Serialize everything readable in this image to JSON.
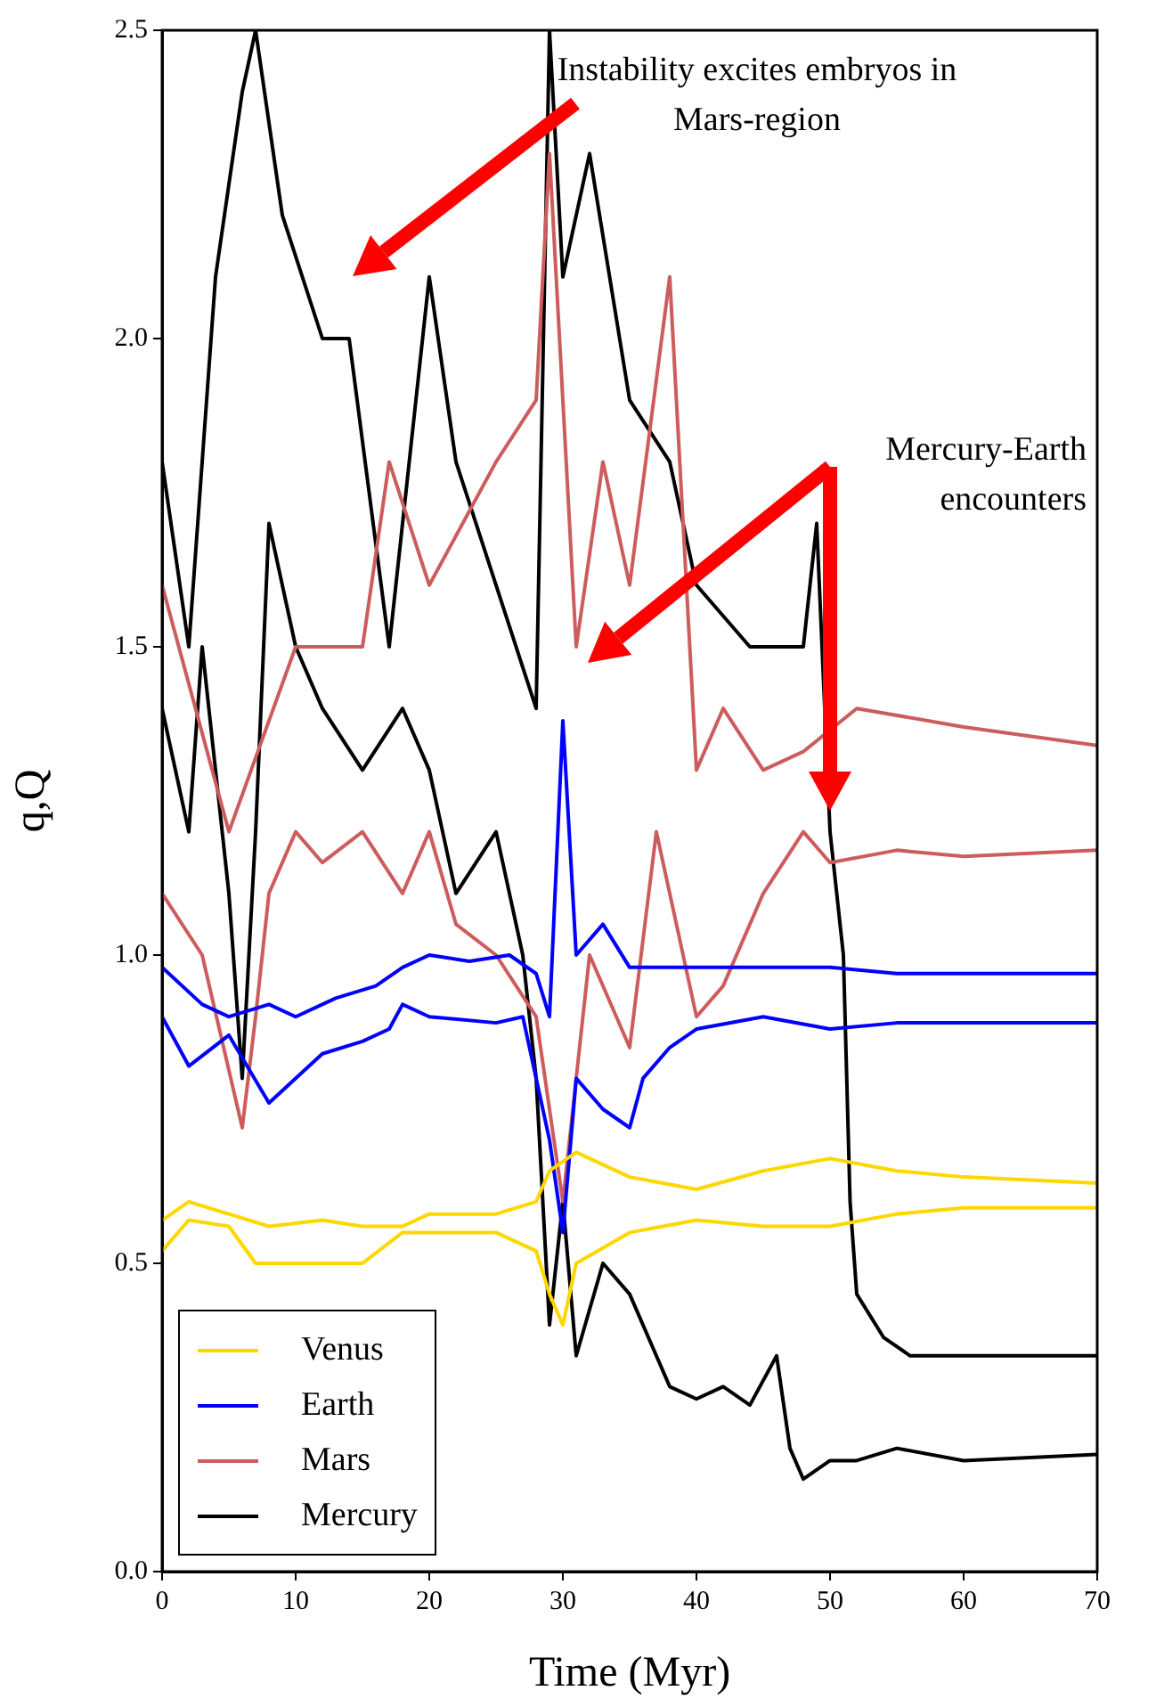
{
  "chart_data": {
    "type": "line",
    "xlabel": "Time (Myr)",
    "ylabel": "q,Q",
    "xlim": [
      0,
      70
    ],
    "ylim": [
      0,
      2.5
    ],
    "xticks": [
      0,
      10,
      20,
      30,
      40,
      50,
      60,
      70
    ],
    "yticks": [
      {
        "value": 0,
        "label": "0.0"
      },
      {
        "value": 0.5,
        "label": "0.5"
      },
      {
        "value": 1,
        "label": "1.0"
      },
      {
        "value": 1.5,
        "label": "1.5"
      },
      {
        "value": 2,
        "label": "2.0"
      },
      {
        "value": 2.5,
        "label": "2.5"
      }
    ],
    "grid": false,
    "legend": "bottom left",
    "marker": "none",
    "line_style": "solid",
    "annotations": [
      "Instability excites embryos in Mars-region",
      "Mercury-Earth encounters"
    ],
    "series": [
      {
        "name": "Venus",
        "color": "#ffd700",
        "x": [
          0,
          2,
          5,
          8,
          12,
          15,
          18,
          20,
          25,
          28,
          29,
          31,
          35,
          40,
          45,
          50,
          55,
          60,
          70
        ],
        "values": [
          0.57,
          0.6,
          0.58,
          0.56,
          0.57,
          0.56,
          0.56,
          0.58,
          0.58,
          0.6,
          0.65,
          0.68,
          0.64,
          0.62,
          0.65,
          0.67,
          0.65,
          0.64,
          0.63
        ]
      },
      {
        "color": "#ffd700",
        "x": [
          0,
          2,
          5,
          7,
          10,
          15,
          18,
          20,
          25,
          28,
          29,
          30,
          31,
          35,
          40,
          45,
          50,
          55,
          60,
          70
        ],
        "values": [
          0.52,
          0.57,
          0.56,
          0.5,
          0.5,
          0.5,
          0.55,
          0.55,
          0.55,
          0.52,
          0.45,
          0.4,
          0.5,
          0.55,
          0.57,
          0.56,
          0.56,
          0.58,
          0.59,
          0.59
        ]
      },
      {
        "name": "Earth",
        "color": "#0000ff",
        "x": [
          0,
          3,
          5,
          8,
          10,
          13,
          16,
          18,
          20,
          23,
          26,
          28,
          29,
          30,
          31,
          33,
          35,
          40,
          45,
          50,
          55,
          60,
          70
        ],
        "values": [
          0.98,
          0.92,
          0.9,
          0.92,
          0.9,
          0.93,
          0.95,
          0.98,
          1.0,
          0.99,
          1.0,
          0.97,
          0.9,
          1.38,
          1.0,
          1.05,
          0.98,
          0.98,
          0.98,
          0.98,
          0.97,
          0.97,
          0.97
        ]
      },
      {
        "color": "#0000ff",
        "x": [
          0,
          2,
          5,
          8,
          12,
          15,
          17,
          18,
          20,
          25,
          27,
          28,
          29,
          30,
          31,
          33,
          35,
          36,
          38,
          40,
          45,
          50,
          55,
          60,
          70
        ],
        "values": [
          0.9,
          0.82,
          0.87,
          0.76,
          0.84,
          0.86,
          0.88,
          0.92,
          0.9,
          0.89,
          0.9,
          0.8,
          0.7,
          0.55,
          0.8,
          0.75,
          0.72,
          0.8,
          0.85,
          0.88,
          0.9,
          0.88,
          0.89,
          0.89,
          0.89
        ]
      },
      {
        "name": "Mars",
        "color": "#cd5c5c",
        "x": [
          0,
          5,
          10,
          15,
          17,
          20,
          25,
          28,
          29,
          31,
          33,
          35,
          38,
          40,
          42,
          45,
          48,
          52,
          60,
          70
        ],
        "values": [
          1.6,
          1.2,
          1.5,
          1.5,
          1.8,
          1.6,
          1.8,
          1.9,
          2.3,
          1.5,
          1.8,
          1.6,
          2.1,
          1.3,
          1.4,
          1.3,
          1.33,
          1.4,
          1.37,
          1.34
        ]
      },
      {
        "color": "#cd5c5c",
        "x": [
          0,
          3,
          6,
          7,
          8,
          10,
          12,
          15,
          18,
          20,
          22,
          25,
          28,
          30,
          32,
          35,
          37,
          40,
          42,
          45,
          48,
          50,
          55,
          60,
          70
        ],
        "values": [
          1.1,
          1.0,
          0.72,
          0.9,
          1.1,
          1.2,
          1.15,
          1.2,
          1.1,
          1.2,
          1.05,
          1.0,
          0.9,
          0.6,
          1.0,
          0.85,
          1.2,
          0.9,
          0.95,
          1.1,
          1.2,
          1.15,
          1.17,
          1.16,
          1.17
        ]
      },
      {
        "name": "Mercury",
        "color": "#000000",
        "x": [
          0,
          2,
          4,
          6,
          7,
          9,
          12,
          14,
          17,
          20,
          22,
          25,
          28,
          29,
          30,
          32,
          35,
          38,
          40,
          44,
          48,
          49,
          50,
          51,
          51.5,
          52,
          54,
          56,
          60,
          70
        ],
        "values": [
          1.8,
          1.5,
          2.1,
          2.4,
          2.5,
          2.2,
          2.0,
          2.0,
          1.5,
          2.1,
          1.8,
          1.6,
          1.4,
          2.5,
          2.1,
          2.3,
          1.9,
          1.8,
          1.6,
          1.5,
          1.5,
          1.7,
          1.2,
          1.0,
          0.6,
          0.45,
          0.38,
          0.35,
          0.35,
          0.35
        ]
      },
      {
        "color": "#000000",
        "x": [
          0,
          2,
          3,
          5,
          6,
          7,
          8,
          10,
          12,
          15,
          18,
          20,
          22,
          25,
          27,
          28,
          29,
          30,
          31,
          33,
          35,
          38,
          40,
          42,
          44,
          46,
          47,
          48,
          50,
          52,
          55,
          60,
          70
        ],
        "values": [
          1.4,
          1.2,
          1.5,
          1.1,
          0.8,
          1.2,
          1.7,
          1.5,
          1.4,
          1.3,
          1.4,
          1.3,
          1.1,
          1.2,
          1.0,
          0.8,
          0.4,
          0.6,
          0.35,
          0.5,
          0.45,
          0.3,
          0.28,
          0.3,
          0.27,
          0.35,
          0.2,
          0.15,
          0.18,
          0.18,
          0.2,
          0.18,
          0.19
        ]
      }
    ]
  }
}
